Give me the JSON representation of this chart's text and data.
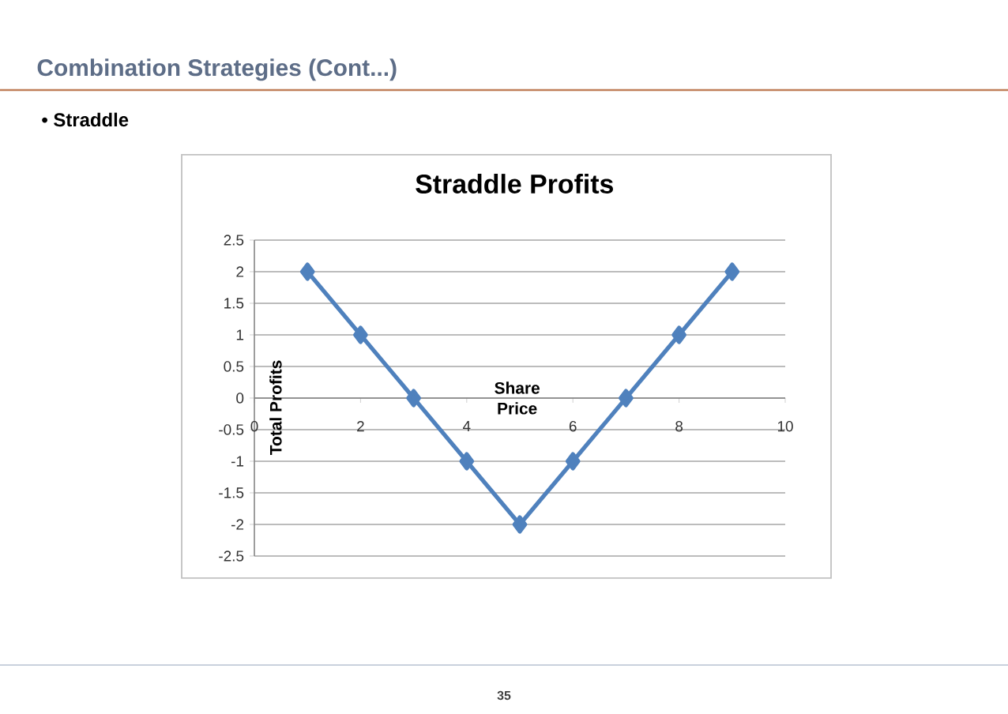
{
  "chart_data": {
    "type": "line",
    "title": "Straddle Profits",
    "xlabel": "Share Price",
    "ylabel": "Total Profits",
    "annotations": [
      "Combination Strategies (Cont...)",
      "• Straddle",
      "35"
    ],
    "x": [
      1,
      2,
      3,
      4,
      5,
      6,
      7,
      8,
      9
    ],
    "series": [
      {
        "color": "#4f81bd",
        "values": [
          2,
          1,
          0,
          -1,
          -2,
          -1,
          0,
          1,
          2
        ]
      }
    ],
    "xlim": [
      0,
      10
    ],
    "xticks": [
      0,
      2,
      4,
      6,
      8,
      10
    ],
    "ylim": [
      -2.5,
      2.5
    ],
    "yticks": [
      -2.5,
      -2,
      -1.5,
      -1,
      -0.5,
      0,
      0.5,
      1,
      1.5,
      2,
      2.5
    ],
    "grid": "y",
    "marker": "diamond",
    "line_style": "solid"
  }
}
